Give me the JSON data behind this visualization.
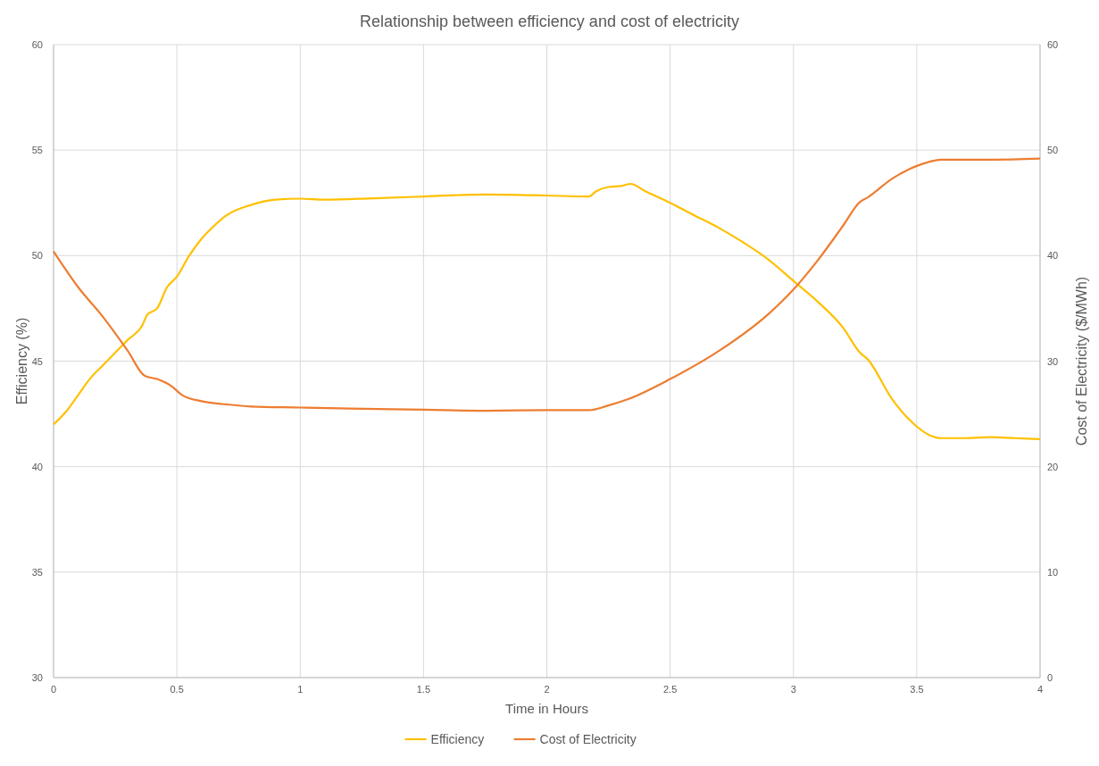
{
  "chart_data": {
    "type": "line",
    "title": "Relationship between efficiency and cost of electricity",
    "xlabel": "Time in Hours",
    "ylabel": "Efficiency (%)",
    "y2label": "Cost of Electricity ($/MWh)",
    "xlim": [
      0,
      4
    ],
    "xticks": [
      0,
      0.5,
      1,
      1.5,
      2,
      2.5,
      3,
      3.5,
      4
    ],
    "ylim": [
      30,
      60
    ],
    "yticks": [
      30,
      35,
      40,
      45,
      50,
      55,
      60
    ],
    "y2lim": [
      0,
      60
    ],
    "y2ticks": [
      0,
      10,
      20,
      30,
      40,
      50,
      60
    ],
    "grid": true,
    "legend": "bottom",
    "marker": "none",
    "series": [
      {
        "name": "Efficiency",
        "color": "#ffc000",
        "x": [
          0,
          0.05,
          0.1,
          0.15,
          0.2,
          0.25,
          0.3,
          0.36,
          0.38,
          0.42,
          0.46,
          0.5,
          0.55,
          0.6,
          0.65,
          0.7,
          0.8,
          0.9,
          1.0,
          1.1,
          1.3,
          1.5,
          1.75,
          2.0,
          2.17,
          2.2,
          2.25,
          2.3,
          2.34,
          2.4,
          2.5,
          2.6,
          2.7,
          2.8,
          2.9,
          3.0,
          3.1,
          3.2,
          3.27,
          3.3,
          3.4,
          3.5,
          3.55,
          3.6,
          3.7,
          3.8,
          3.9,
          4.0
        ],
        "values": [
          42.0,
          42.6,
          43.4,
          44.2,
          44.8,
          45.4,
          46.0,
          46.7,
          47.2,
          47.5,
          48.5,
          49.0,
          50.0,
          50.8,
          51.4,
          51.9,
          52.4,
          52.65,
          52.7,
          52.65,
          52.72,
          52.8,
          52.9,
          52.85,
          52.8,
          53.05,
          53.25,
          53.3,
          53.4,
          53.05,
          52.5,
          51.9,
          51.3,
          50.6,
          49.8,
          48.8,
          47.8,
          46.6,
          45.4,
          45.1,
          43.2,
          41.9,
          41.5,
          41.35,
          41.35,
          41.4,
          41.35,
          41.3
        ]
      },
      {
        "name": "Cost of Electricity",
        "color": "#ed7d31",
        "axis": "y2",
        "x": [
          0,
          0.1,
          0.2,
          0.3,
          0.37,
          0.42,
          0.48,
          0.52,
          0.6,
          0.7,
          0.8,
          1.0,
          1.2,
          1.5,
          1.75,
          2.0,
          2.17,
          2.25,
          2.33,
          2.5,
          2.7,
          2.9,
          3.0,
          3.1,
          3.2,
          3.27,
          3.3,
          3.4,
          3.5,
          3.6,
          3.8,
          4.0
        ],
        "values": [
          40.4,
          37.0,
          34.2,
          31.0,
          28.6,
          28.3,
          27.6,
          26.8,
          26.2,
          25.9,
          25.7,
          25.6,
          25.5,
          25.4,
          25.3,
          25.35,
          25.35,
          25.8,
          26.4,
          28.3,
          31.0,
          34.5,
          36.8,
          39.6,
          42.8,
          45.1,
          45.5,
          47.3,
          48.5,
          49.1,
          49.1,
          49.2
        ]
      }
    ]
  }
}
